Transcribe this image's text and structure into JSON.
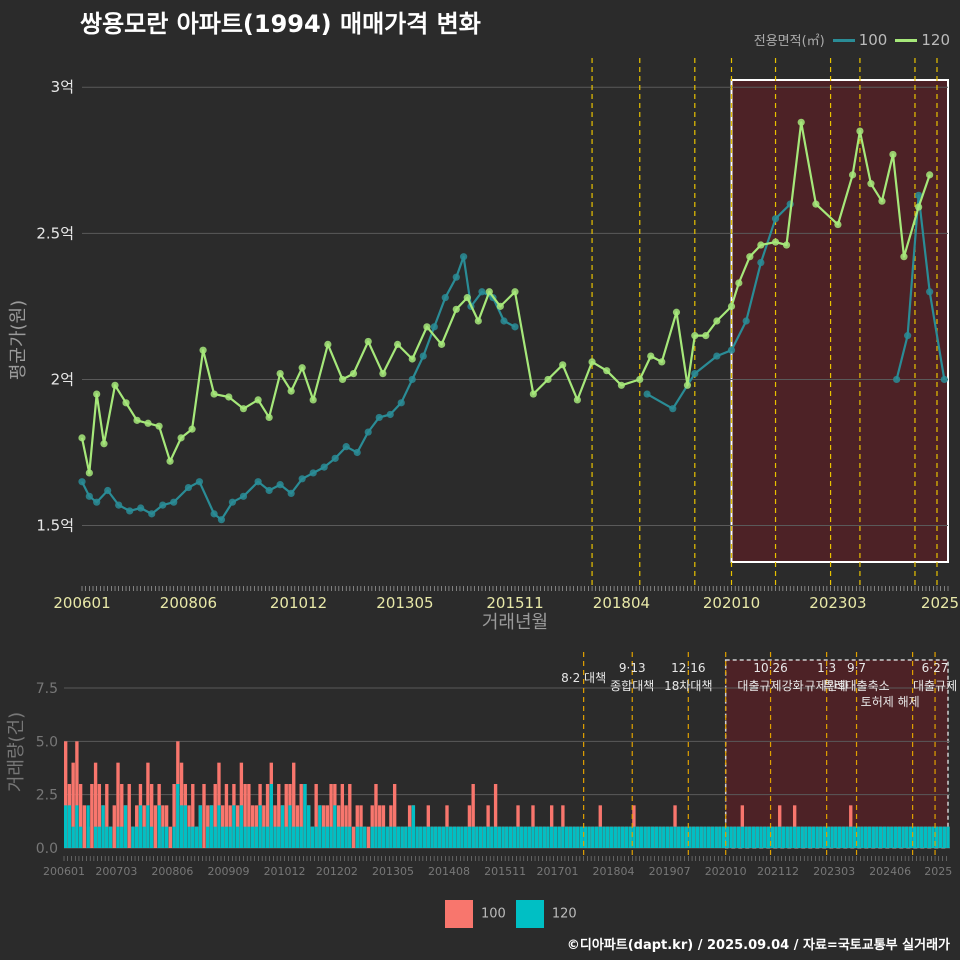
{
  "title": "쌍용모란 아파트(1994) 매매가격 변화",
  "credit": "©디아파트(dapt.kr) / 2025.09.04 / 자료=국토교통부 실거래가",
  "legend_top": {
    "title": "전용면적(㎡)",
    "items": [
      "100",
      "120"
    ]
  },
  "legend_bottom": {
    "items": [
      "100",
      "120"
    ]
  },
  "colors": {
    "s100_line": "#2a8c96",
    "s100_bar": "#00bfc4",
    "s120_line": "#a6e87a",
    "s120_bar": "#f8766d",
    "policy": "#e8c200",
    "highlight": "#5a2025"
  },
  "chart_data": [
    {
      "type": "line",
      "ylabel": "평균가(원)",
      "xlabel": "거래년월",
      "yticks": [
        "1.5억",
        "2억",
        "2.5억",
        "3억"
      ],
      "ytick_values": [
        15000,
        20000,
        25000,
        30000
      ],
      "ylim": [
        13000,
        31000
      ],
      "xticks": [
        "200601",
        "200806",
        "201012",
        "201305",
        "201511",
        "201804",
        "202010",
        "202303",
        "2025"
      ],
      "xlim": [
        "2006-01",
        "2025-09"
      ],
      "highlight_range": [
        "2020-10",
        "2025-09"
      ],
      "policy_lines": [
        "2017-08",
        "2018-09",
        "2019-12",
        "2020-10",
        "2021-10",
        "2023-01",
        "2023-09",
        "2024-12",
        "2025-06"
      ],
      "series": [
        {
          "name": "100",
          "points": [
            [
              "2006-01",
              16500
            ],
            [
              "2006-03",
              16000
            ],
            [
              "2006-05",
              15800
            ],
            [
              "2006-08",
              16200
            ],
            [
              "2006-11",
              15700
            ],
            [
              "2007-02",
              15500
            ],
            [
              "2007-05",
              15600
            ],
            [
              "2007-08",
              15400
            ],
            [
              "2007-11",
              15700
            ],
            [
              "2008-02",
              15800
            ],
            [
              "2008-06",
              16300
            ],
            [
              "2008-09",
              16500
            ],
            [
              "2009-01",
              15400
            ],
            [
              "2009-03",
              15200
            ],
            [
              "2009-06",
              15800
            ],
            [
              "2009-09",
              16000
            ],
            [
              "2010-01",
              16500
            ],
            [
              "2010-04",
              16200
            ],
            [
              "2010-07",
              16400
            ],
            [
              "2010-10",
              16100
            ],
            [
              "2011-01",
              16600
            ],
            [
              "2011-04",
              16800
            ],
            [
              "2011-07",
              17000
            ],
            [
              "2011-10",
              17300
            ],
            [
              "2012-01",
              17700
            ],
            [
              "2012-04",
              17500
            ],
            [
              "2012-07",
              18200
            ],
            [
              "2012-10",
              18700
            ],
            [
              "2013-01",
              18800
            ],
            [
              "2013-04",
              19200
            ],
            [
              "2013-07",
              20000
            ],
            [
              "2013-10",
              20800
            ],
            [
              "2014-01",
              21800
            ],
            [
              "2014-04",
              22800
            ],
            [
              "2014-07",
              23500
            ],
            [
              "2014-09",
              24200
            ],
            [
              "2014-11",
              22500
            ],
            [
              "2015-02",
              23000
            ],
            [
              "2015-05",
              22800
            ],
            [
              "2015-08",
              22000
            ],
            [
              "2015-11",
              21800
            ],
            [
              "2018-11",
              19500
            ],
            [
              "2019-06",
              19000
            ],
            [
              "2019-12",
              20200
            ],
            [
              "2020-06",
              20800
            ],
            [
              "2020-10",
              21000
            ],
            [
              "2021-02",
              22000
            ],
            [
              "2021-06",
              24000
            ],
            [
              "2021-10",
              25500
            ],
            [
              "2022-02",
              26000
            ],
            [
              "2024-07",
              20000
            ],
            [
              "2024-10",
              21500
            ],
            [
              "2025-01",
              26300
            ],
            [
              "2025-04",
              23000
            ],
            [
              "2025-08",
              20000
            ]
          ]
        },
        {
          "name": "120",
          "points": [
            [
              "2006-01",
              18000
            ],
            [
              "2006-03",
              16800
            ],
            [
              "2006-05",
              19500
            ],
            [
              "2006-07",
              17800
            ],
            [
              "2006-10",
              19800
            ],
            [
              "2007-01",
              19200
            ],
            [
              "2007-04",
              18600
            ],
            [
              "2007-07",
              18500
            ],
            [
              "2007-10",
              18400
            ],
            [
              "2008-01",
              17200
            ],
            [
              "2008-04",
              18000
            ],
            [
              "2008-07",
              18300
            ],
            [
              "2008-10",
              21000
            ],
            [
              "2009-01",
              19500
            ],
            [
              "2009-05",
              19400
            ],
            [
              "2009-09",
              19000
            ],
            [
              "2010-01",
              19300
            ],
            [
              "2010-04",
              18700
            ],
            [
              "2010-07",
              20200
            ],
            [
              "2010-10",
              19600
            ],
            [
              "2011-01",
              20400
            ],
            [
              "2011-04",
              19300
            ],
            [
              "2011-08",
              21200
            ],
            [
              "2011-12",
              20000
            ],
            [
              "2012-03",
              20200
            ],
            [
              "2012-07",
              21300
            ],
            [
              "2012-11",
              20200
            ],
            [
              "2013-03",
              21200
            ],
            [
              "2013-07",
              20700
            ],
            [
              "2013-11",
              21800
            ],
            [
              "2014-03",
              21200
            ],
            [
              "2014-07",
              22400
            ],
            [
              "2014-10",
              22800
            ],
            [
              "2015-01",
              22000
            ],
            [
              "2015-04",
              23000
            ],
            [
              "2015-07",
              22500
            ],
            [
              "2015-11",
              23000
            ],
            [
              "2016-04",
              19500
            ],
            [
              "2016-08",
              20000
            ],
            [
              "2016-12",
              20500
            ],
            [
              "2017-04",
              19300
            ],
            [
              "2017-08",
              20600
            ],
            [
              "2017-12",
              20300
            ],
            [
              "2018-04",
              19800
            ],
            [
              "2018-09",
              20000
            ],
            [
              "2018-12",
              20800
            ],
            [
              "2019-03",
              20600
            ],
            [
              "2019-07",
              22300
            ],
            [
              "2019-10",
              19800
            ],
            [
              "2019-12",
              21500
            ],
            [
              "2020-03",
              21500
            ],
            [
              "2020-06",
              22000
            ],
            [
              "2020-10",
              22500
            ],
            [
              "2020-12",
              23300
            ],
            [
              "2021-03",
              24200
            ],
            [
              "2021-06",
              24600
            ],
            [
              "2021-10",
              24700
            ],
            [
              "2022-01",
              24600
            ],
            [
              "2022-05",
              28800
            ],
            [
              "2022-09",
              26000
            ],
            [
              "2023-03",
              25300
            ],
            [
              "2023-07",
              27000
            ],
            [
              "2023-09",
              28500
            ],
            [
              "2023-12",
              26700
            ],
            [
              "2024-03",
              26100
            ],
            [
              "2024-06",
              27700
            ],
            [
              "2024-09",
              24200
            ],
            [
              "2025-01",
              25900
            ],
            [
              "2025-04",
              27000
            ]
          ]
        }
      ]
    },
    {
      "type": "bar",
      "ylabel": "거래량(건)",
      "yticks": [
        "0.0",
        "2.5",
        "5.0",
        "7.5"
      ],
      "ytick_values": [
        0,
        2.5,
        5,
        7.5
      ],
      "ylim": [
        0,
        9
      ],
      "xticks": [
        "200601",
        "200703",
        "200806",
        "200909",
        "201012",
        "201202",
        "201305",
        "201408",
        "201511",
        "201701",
        "201804",
        "201907",
        "202010",
        "202112",
        "202303",
        "202406",
        "2025"
      ],
      "xlim": [
        "2006-01",
        "2025-09"
      ],
      "highlight_range": [
        "2020-10",
        "2025-09"
      ],
      "annotations": [
        {
          "date": "2017-08",
          "lines": [
            "8·2 대책"
          ]
        },
        {
          "date": "2018-09",
          "lines": [
            "9·13",
            "종합대책"
          ]
        },
        {
          "date": "2019-12",
          "lines": [
            "12·16",
            "18차대책"
          ]
        },
        {
          "date": "2021-10",
          "lines": [
            "10·26",
            "대출규제강화"
          ]
        },
        {
          "date": "2023-01",
          "lines": [
            "1·3",
            "규제완화"
          ]
        },
        {
          "date": "2023-09",
          "lines": [
            "9·7",
            "특례대출축소"
          ]
        },
        {
          "date": "2024-06",
          "lines": [
            "토허제 해제"
          ]
        },
        {
          "date": "2025-06",
          "lines": [
            "6·27",
            "대출규제"
          ]
        }
      ],
      "series": [
        {
          "name": "100",
          "values": [
            5,
            3,
            4,
            5,
            3,
            2,
            1,
            3,
            4,
            3,
            2,
            3,
            1,
            2,
            4,
            3,
            2,
            3,
            1,
            2,
            3,
            2,
            4,
            3,
            2,
            3,
            2,
            2,
            1,
            3,
            5,
            4,
            3,
            2,
            3,
            1,
            2,
            3,
            2,
            2,
            3,
            4,
            2,
            3,
            2,
            3,
            2,
            4,
            3,
            3,
            2,
            2,
            3,
            2,
            3,
            4,
            2,
            3,
            2,
            3,
            3,
            4,
            2,
            3,
            3,
            2,
            1,
            3,
            2,
            2,
            2,
            3,
            3,
            2,
            3,
            2,
            3,
            1,
            2,
            2,
            1,
            1,
            2,
            3,
            2,
            2,
            1,
            2,
            3,
            1,
            1,
            1,
            2,
            2,
            1,
            1,
            1,
            2,
            1,
            1,
            1,
            1,
            2,
            1,
            1,
            1,
            1,
            1,
            2,
            3,
            1,
            1,
            1,
            2,
            1,
            3,
            1,
            1,
            1,
            1,
            1,
            2,
            1,
            1,
            1,
            2,
            1,
            1,
            1,
            1,
            2,
            1,
            1,
            2,
            1,
            1,
            1,
            1,
            1,
            1,
            1,
            1,
            1,
            2,
            1,
            1,
            1,
            1,
            1,
            1,
            1,
            1,
            2,
            1,
            1,
            1,
            1,
            1,
            1,
            1,
            1,
            1,
            1,
            2,
            1,
            1,
            1,
            1,
            1,
            1,
            1,
            1,
            1,
            1,
            1,
            1,
            1,
            1,
            1,
            1,
            1,
            2,
            1,
            1,
            1,
            1,
            1,
            1,
            1,
            1,
            1,
            2,
            1,
            1,
            1,
            2,
            1,
            1,
            1,
            1,
            1,
            1,
            1,
            1,
            1,
            1,
            1,
            1,
            1,
            1,
            2,
            1,
            1,
            1,
            1,
            1,
            1,
            1,
            1,
            1,
            1,
            1,
            1,
            1,
            1,
            1,
            1,
            1,
            1,
            1,
            1,
            1,
            1,
            1,
            1,
            1,
            1,
            1,
            1,
            1
          ]
        },
        {
          "name": "120",
          "values": [
            2,
            2,
            1,
            2,
            1,
            0,
            2,
            0,
            1,
            1,
            2,
            1,
            1,
            0,
            1,
            1,
            2,
            0,
            1,
            1,
            2,
            1,
            2,
            1,
            0,
            2,
            1,
            1,
            0,
            1,
            3,
            2,
            2,
            1,
            1,
            1,
            2,
            0,
            1,
            2,
            1,
            2,
            1,
            1,
            1,
            2,
            1,
            2,
            1,
            1,
            1,
            1,
            2,
            1,
            1,
            3,
            1,
            1,
            2,
            1,
            2,
            1,
            1,
            1,
            3,
            2,
            1,
            1,
            2,
            1,
            1,
            1,
            2,
            1,
            1,
            1,
            1,
            0,
            1,
            1,
            1,
            0,
            1,
            1,
            1,
            1,
            1,
            1,
            1,
            1,
            1,
            1,
            1,
            2,
            1,
            1,
            1,
            1,
            1,
            1,
            1,
            1,
            1,
            1,
            1,
            1,
            1,
            1,
            1,
            1,
            1,
            1,
            1,
            1,
            1,
            1,
            1,
            1,
            1,
            1,
            1,
            1,
            1,
            1,
            1,
            1,
            1,
            1,
            1,
            1,
            1,
            1,
            1,
            1,
            1,
            1,
            1,
            1,
            1,
            1,
            1,
            1,
            1,
            1,
            1,
            1,
            1,
            1,
            1,
            1,
            1,
            1,
            1,
            1,
            1,
            1,
            1,
            1,
            1,
            1,
            1,
            1,
            1,
            1,
            1,
            1,
            1,
            1,
            1,
            1,
            1,
            1,
            1,
            1,
            1,
            1,
            1,
            1,
            1,
            1,
            1,
            1,
            1,
            1,
            1,
            1,
            1,
            1,
            1,
            1,
            1,
            1,
            1,
            1,
            1,
            1,
            1,
            1,
            1,
            1,
            1,
            1,
            1,
            1,
            1,
            1,
            1,
            1,
            1,
            1,
            1,
            1,
            1,
            1,
            1,
            1,
            1,
            1,
            1,
            1,
            1,
            1,
            1,
            1,
            1,
            1,
            1,
            1,
            1,
            1,
            1,
            1,
            1,
            1,
            1,
            1,
            1,
            1
          ]
        }
      ]
    }
  ]
}
